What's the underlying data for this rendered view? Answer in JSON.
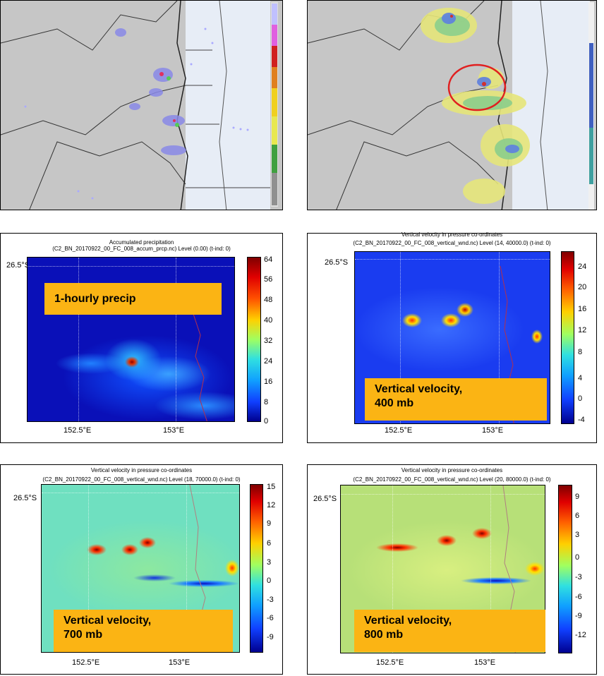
{
  "panels": {
    "precip": {
      "title_line1": "Accumulated precipitation",
      "title_line2": "(C2_BN_20170922_00_FC_008_accum_prcp.nc) Level (0.00) (t-ind: 0)",
      "label": "1-hourly precip",
      "lat_label": "26.5°S",
      "lon_labels": [
        "152.5°E",
        "153°E"
      ],
      "colorbar_ticks": [
        "64",
        "56",
        "48",
        "40",
        "32",
        "24",
        "16",
        "8",
        "0"
      ]
    },
    "w400": {
      "title_line1": "Vertical velocity in pressure co-ordinates",
      "title_line2": "(C2_BN_20170922_00_FC_008_vertical_wnd.nc) Level (14, 40000.0) (t-ind: 0)",
      "label_line1": "Vertical velocity,",
      "label_line2": "400 mb",
      "lat_label": "26.5°S",
      "lon_labels": [
        "152.5°E",
        "153°E"
      ],
      "colorbar_ticks": [
        "24",
        "20",
        "16",
        "12",
        "8",
        "4",
        "0",
        "-4"
      ]
    },
    "w700": {
      "title_line1": "Vertical velocity in pressure co-ordinates",
      "title_line2": "(C2_BN_20170922_00_FC_008_vertical_wnd.nc) Level (18, 70000.0) (t-ind: 0)",
      "label_line1": "Vertical velocity,",
      "label_line2": "700 mb",
      "lat_label": "26.5°S",
      "lon_labels": [
        "152.5°E",
        "153°E"
      ],
      "colorbar_ticks": [
        "15",
        "12",
        "9",
        "6",
        "3",
        "0",
        "-3",
        "-6",
        "-9"
      ]
    },
    "w800": {
      "title_line1": "Vertical velocity in pressure co-ordinates",
      "title_line2": "(C2_BN_20170922_00_FC_008_vertical_wnd.nc) Level (20, 80000.0) (t-ind: 0)",
      "label_line1": "Vertical velocity,",
      "label_line2": "800 mb",
      "lat_label": "26.5°S",
      "lon_labels": [
        "152.5°E",
        "153°E"
      ],
      "colorbar_ticks": [
        "9",
        "6",
        "3",
        "0",
        "-3",
        "-6",
        "-9",
        "-12"
      ]
    }
  },
  "colors": {
    "label_box": "#fbb414",
    "jet_low": "#00008f",
    "jet_high": "#800000",
    "circle": "#e02020",
    "map_land": "#c9c9c9",
    "map_sea": "#e6ecf5"
  }
}
